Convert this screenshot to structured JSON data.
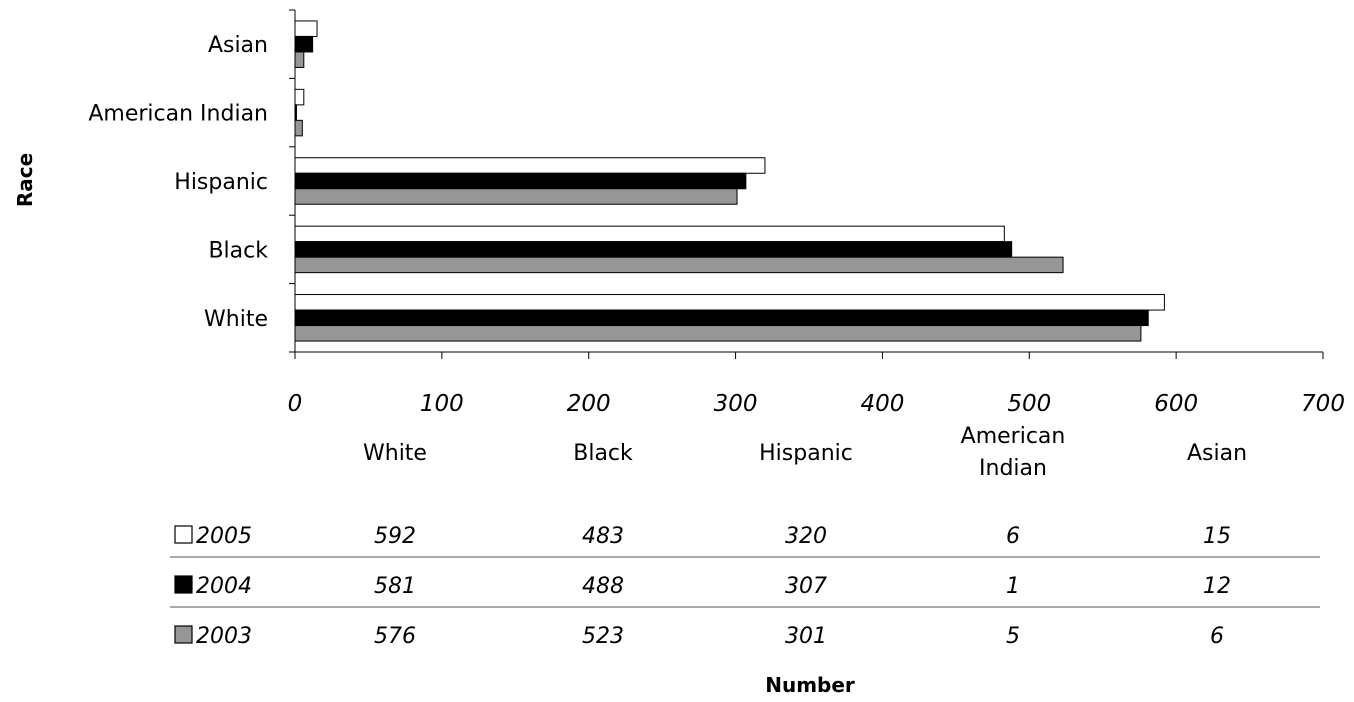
{
  "chart_data": {
    "type": "bar",
    "orientation": "horizontal",
    "categories": [
      "White",
      "Black",
      "Hispanic",
      "American Indian",
      "Asian"
    ],
    "series": [
      {
        "name": "2005",
        "color": "#ffffff",
        "values": [
          592,
          483,
          320,
          6,
          15
        ]
      },
      {
        "name": "2004",
        "color": "#000000",
        "values": [
          581,
          488,
          307,
          1,
          12
        ]
      },
      {
        "name": "2003",
        "color": "#969696",
        "values": [
          576,
          523,
          301,
          5,
          6
        ]
      }
    ],
    "xlabel": "Number",
    "ylabel": "Race",
    "xlim": [
      0,
      700
    ],
    "xticks": [
      "0",
      "100",
      "200",
      "300",
      "400",
      "500",
      "600",
      "700"
    ],
    "legend": "data table below chart",
    "table": {
      "columns": [
        "White",
        "Black",
        "Hispanic",
        "American\nIndian",
        "Asian"
      ],
      "rows": [
        {
          "label": "2005",
          "cells": [
            "592",
            "483",
            "320",
            "6",
            "15"
          ]
        },
        {
          "label": "2004",
          "cells": [
            "581",
            "488",
            "307",
            "1",
            "12"
          ]
        },
        {
          "label": "2003",
          "cells": [
            "576",
            "523",
            "301",
            "5",
            "6"
          ]
        }
      ]
    }
  }
}
